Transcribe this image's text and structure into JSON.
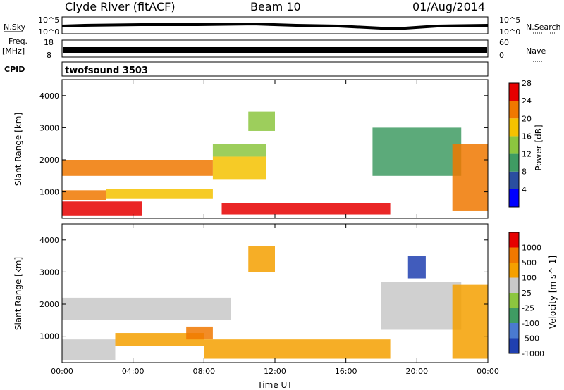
{
  "header": {
    "station": "Clyde River (fitACF)",
    "beam": "Beam 10",
    "date": "01/Aug/2014"
  },
  "status_panels": {
    "nsky_label": "N.Sky",
    "nsky_ticks": [
      "10^5",
      "10^0"
    ],
    "nsearch_label": "N.Search",
    "nsearch_ticks": [
      "10^5",
      "10^0"
    ],
    "freq_label": "Freq.",
    "freq_unit": "[MHz]",
    "freq_ticks": [
      "18",
      "8"
    ],
    "nave_label": "Nave",
    "nave_ticks": [
      "60",
      "0"
    ],
    "cpid_label": "CPID",
    "cpid_value": "twofsound 3503"
  },
  "chart_data": [
    {
      "type": "heatmap",
      "name": "power",
      "ylabel": "Slant Range [km]",
      "ylim": [
        180,
        4500
      ],
      "yticks": [
        "1000",
        "2000",
        "3000",
        "4000"
      ],
      "xlim": [
        0,
        24
      ],
      "colorbar_label": "Power [dB]",
      "colorbar_ticks": [
        "4",
        "8",
        "12",
        "16",
        "20",
        "24",
        "28"
      ],
      "colors": [
        "#0000ff",
        "#2a4ea0",
        "#3f9b63",
        "#8cc63f",
        "#f5c200",
        "#f07800",
        "#e60000"
      ],
      "bands": [
        {
          "t0": 0.0,
          "t1": 4.5,
          "r0": 250,
          "r1": 700,
          "level": 6
        },
        {
          "t0": 0.0,
          "t1": 2.5,
          "r0": 750,
          "r1": 1050,
          "level": 5
        },
        {
          "t0": 2.5,
          "t1": 8.5,
          "r0": 800,
          "r1": 1100,
          "level": 4
        },
        {
          "t0": 0.0,
          "t1": 8.5,
          "r0": 1500,
          "r1": 2000,
          "level": 5
        },
        {
          "t0": 8.5,
          "t1": 11.5,
          "r0": 1400,
          "r1": 2100,
          "level": 4
        },
        {
          "t0": 8.5,
          "t1": 11.5,
          "r0": 2100,
          "r1": 2500,
          "level": 3
        },
        {
          "t0": 9.0,
          "t1": 18.5,
          "r0": 300,
          "r1": 650,
          "level": 6
        },
        {
          "t0": 10.5,
          "t1": 12.0,
          "r0": 2900,
          "r1": 3500,
          "level": 3
        },
        {
          "t0": 17.5,
          "t1": 22.5,
          "r0": 1500,
          "r1": 3000,
          "level": 2
        },
        {
          "t0": 22.0,
          "t1": 24.0,
          "r0": 400,
          "r1": 2500,
          "level": 5
        }
      ]
    },
    {
      "type": "heatmap",
      "name": "velocity",
      "xlabel": "Time UT",
      "ylabel": "Slant Range [km]",
      "ylim": [
        180,
        4500
      ],
      "yticks": [
        "1000",
        "2000",
        "3000",
        "4000"
      ],
      "xlim": [
        0,
        24
      ],
      "xticks": [
        "00:00",
        "04:00",
        "08:00",
        "12:00",
        "16:00",
        "20:00",
        "00:00"
      ],
      "colorbar_label": "Velocity [m s^-1]",
      "colorbar_ticks": [
        "1000",
        "500",
        "100",
        "25",
        "-25",
        "-100",
        "-500",
        "-1000"
      ],
      "colors": [
        "#2040b0",
        "#4a7ad0",
        "#3f9b63",
        "#8cc63f",
        "#c8c8c8",
        "#f5a000",
        "#f07800",
        "#e60000"
      ],
      "bands": [
        {
          "t0": 0.0,
          "t1": 9.5,
          "r0": 1500,
          "r1": 2200,
          "level": 4
        },
        {
          "t0": 0.0,
          "t1": 3.0,
          "r0": 250,
          "r1": 900,
          "level": 4
        },
        {
          "t0": 3.0,
          "t1": 8.0,
          "r0": 700,
          "r1": 1100,
          "level": 5
        },
        {
          "t0": 7.0,
          "t1": 8.5,
          "r0": 900,
          "r1": 1300,
          "level": 6
        },
        {
          "t0": 8.0,
          "t1": 18.5,
          "r0": 300,
          "r1": 900,
          "level": 5
        },
        {
          "t0": 10.5,
          "t1": 12.0,
          "r0": 3000,
          "r1": 3800,
          "level": 5
        },
        {
          "t0": 18.0,
          "t1": 22.5,
          "r0": 1200,
          "r1": 2700,
          "level": 4
        },
        {
          "t0": 19.5,
          "t1": 20.5,
          "r0": 2800,
          "r1": 3500,
          "level": 0
        },
        {
          "t0": 22.0,
          "t1": 24.0,
          "r0": 300,
          "r1": 2600,
          "level": 5
        }
      ]
    }
  ]
}
